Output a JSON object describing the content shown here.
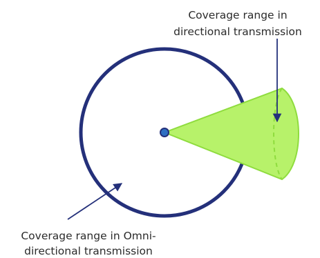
{
  "labels": {
    "directional_line1": "Coverage range in",
    "directional_line2": "directional transmission",
    "omni_line1": "Coverage range in Omni-",
    "omni_line2": "directional transmission"
  },
  "colors": {
    "circle_stroke": "#24307a",
    "cone_fill": "#b7f26a",
    "cone_stroke": "#8fdc3e",
    "node_fill": "#2e6fc2",
    "arrow": "#24307a",
    "text": "#2b2b2b"
  }
}
